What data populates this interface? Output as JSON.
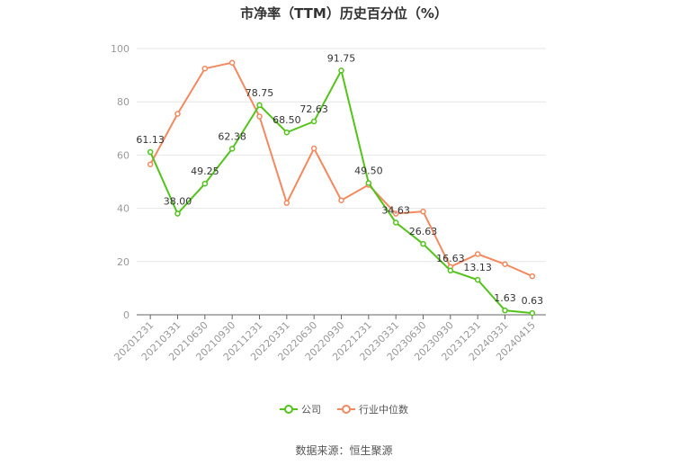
{
  "chart_data": {
    "type": "line",
    "title": "市净率（TTM）历史百分位（%）",
    "categories": [
      "20201231",
      "20210331",
      "20210630",
      "20210930",
      "20211231",
      "20220331",
      "20220630",
      "20220930",
      "20221231",
      "20230331",
      "20230630",
      "20230930",
      "20231231",
      "20240331",
      "20240415"
    ],
    "ylim": [
      0,
      100
    ],
    "yticks": [
      0,
      20,
      40,
      60,
      80,
      100
    ],
    "grid": true,
    "legend_position": "bottom",
    "series": [
      {
        "name": "公司",
        "color": "#52c41a",
        "values": [
          61.13,
          38.0,
          49.25,
          62.38,
          78.75,
          68.5,
          72.63,
          91.75,
          49.5,
          34.63,
          26.63,
          16.63,
          13.13,
          1.63,
          0.63
        ],
        "labels": [
          "61.13",
          "38.00",
          "49.25",
          "62.38",
          "78.75",
          "68.50",
          "72.63",
          "91.75",
          "49.50",
          "34.63",
          "26.63",
          "16.63",
          "13.13",
          "1.63",
          "0.63"
        ]
      },
      {
        "name": "行业中位数",
        "color": "#f4895f",
        "values": [
          56.5,
          75.5,
          92.5,
          94.7,
          74.5,
          42.0,
          62.5,
          43.0,
          48.8,
          38.0,
          38.8,
          18.0,
          22.8,
          19.0,
          14.5
        ]
      }
    ]
  },
  "source": "数据来源：恒生聚源"
}
